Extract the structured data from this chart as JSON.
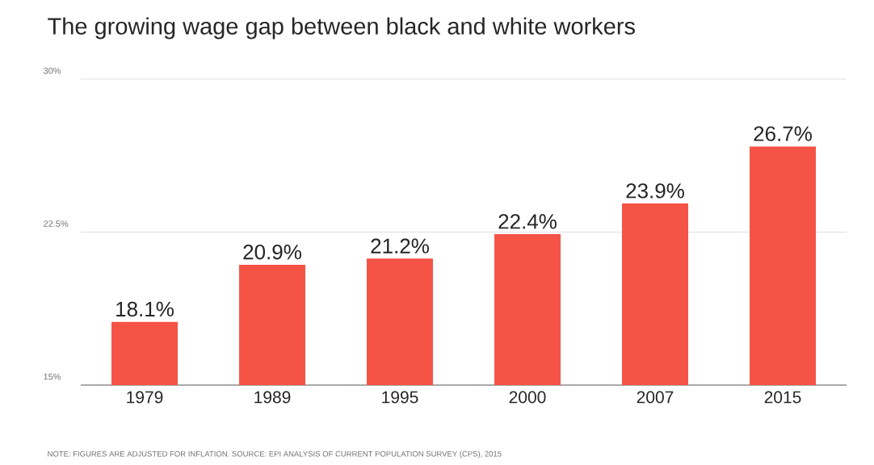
{
  "chart_data": {
    "type": "bar",
    "title": "The growing wage gap between black and white workers",
    "categories": [
      "1979",
      "1989",
      "1995",
      "2000",
      "2007",
      "2015"
    ],
    "values": [
      18.1,
      20.9,
      21.2,
      22.4,
      23.9,
      26.7
    ],
    "value_labels": [
      "18.1%",
      "20.9%",
      "21.2%",
      "22.4%",
      "23.9%",
      "26.7%"
    ],
    "color": "#f55345",
    "ylim": [
      15,
      30
    ],
    "yticks": [
      {
        "value": 15,
        "label": "15%"
      },
      {
        "value": 22.5,
        "label": "22.5%"
      },
      {
        "value": 30,
        "label": "30%"
      }
    ],
    "grid": "y",
    "annotations": [
      "NOTE: FIGURES ARE ADJUSTED FOR INFLATION. SOURCE: EPI ANALYSIS OF CURRENT POPULATION SURVEY (CPS), 2015"
    ]
  }
}
